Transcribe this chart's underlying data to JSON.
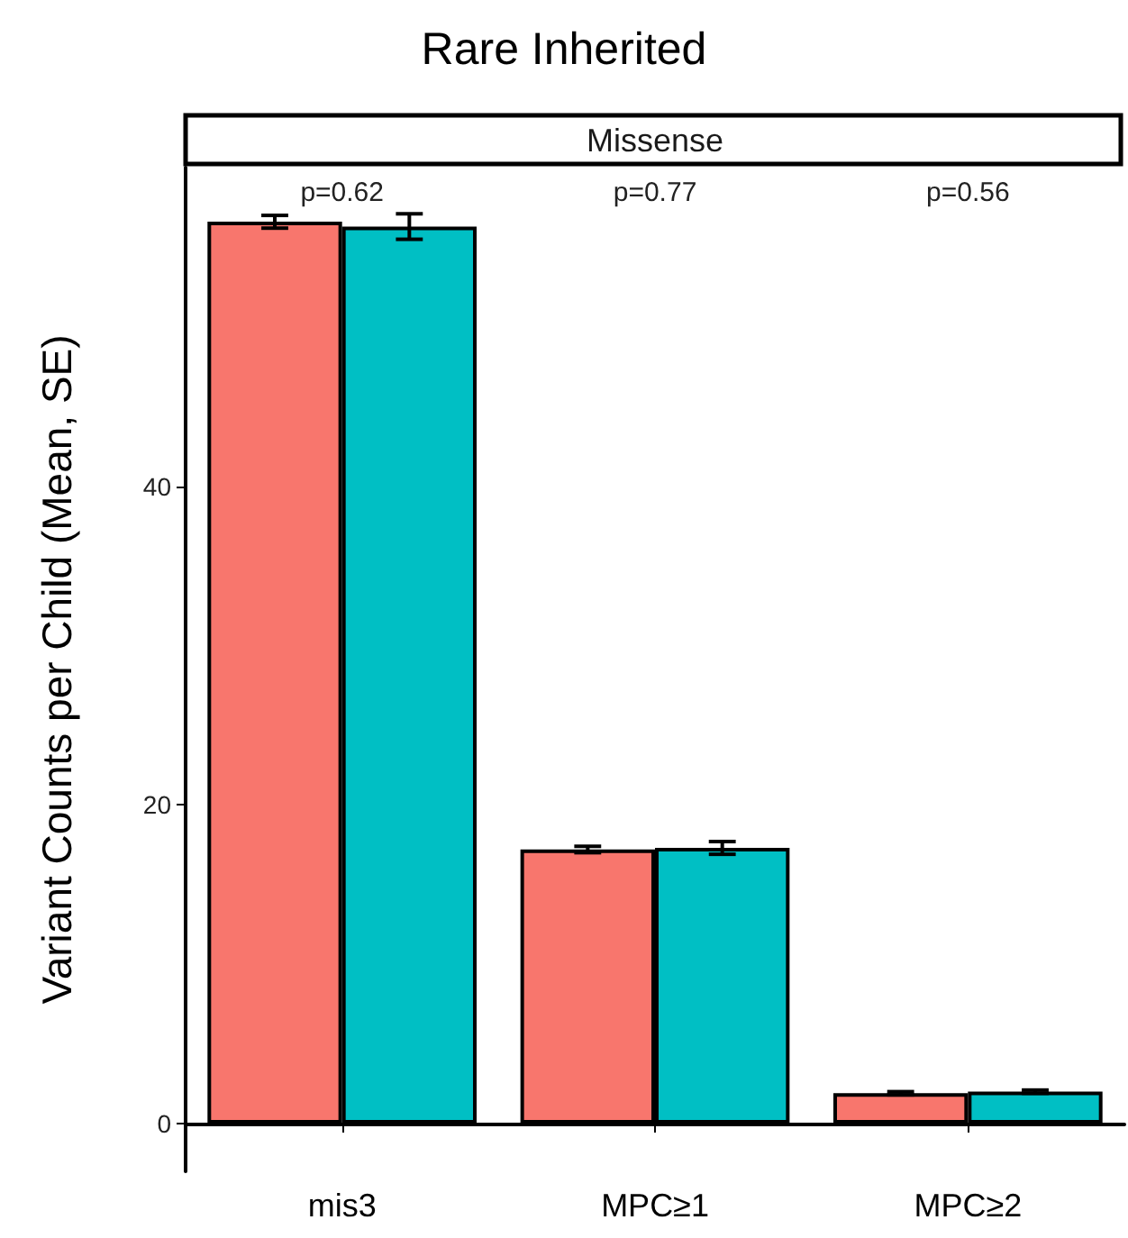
{
  "chart_data": {
    "type": "bar",
    "title": "Rare Inherited",
    "subtitle": "Missense",
    "ylabel": "Variant Counts per Child (Mean, SE)",
    "categories": [
      "mis3",
      "MPC≥1",
      "MPC≥2"
    ],
    "series": [
      {
        "color": "#f8766d",
        "values": [
          56.6,
          17.2,
          1.9
        ],
        "errors": [
          0.4,
          0.2,
          0.1
        ]
      },
      {
        "color": "#00bfc4",
        "values": [
          56.3,
          17.3,
          2.0
        ],
        "errors": [
          0.8,
          0.4,
          0.1
        ]
      }
    ],
    "ylim": [
      -3,
      60
    ],
    "yticks": [
      0,
      20,
      40
    ],
    "grid": false,
    "annotations": [
      "p=0.62",
      "p=0.77",
      "p=0.56"
    ]
  }
}
